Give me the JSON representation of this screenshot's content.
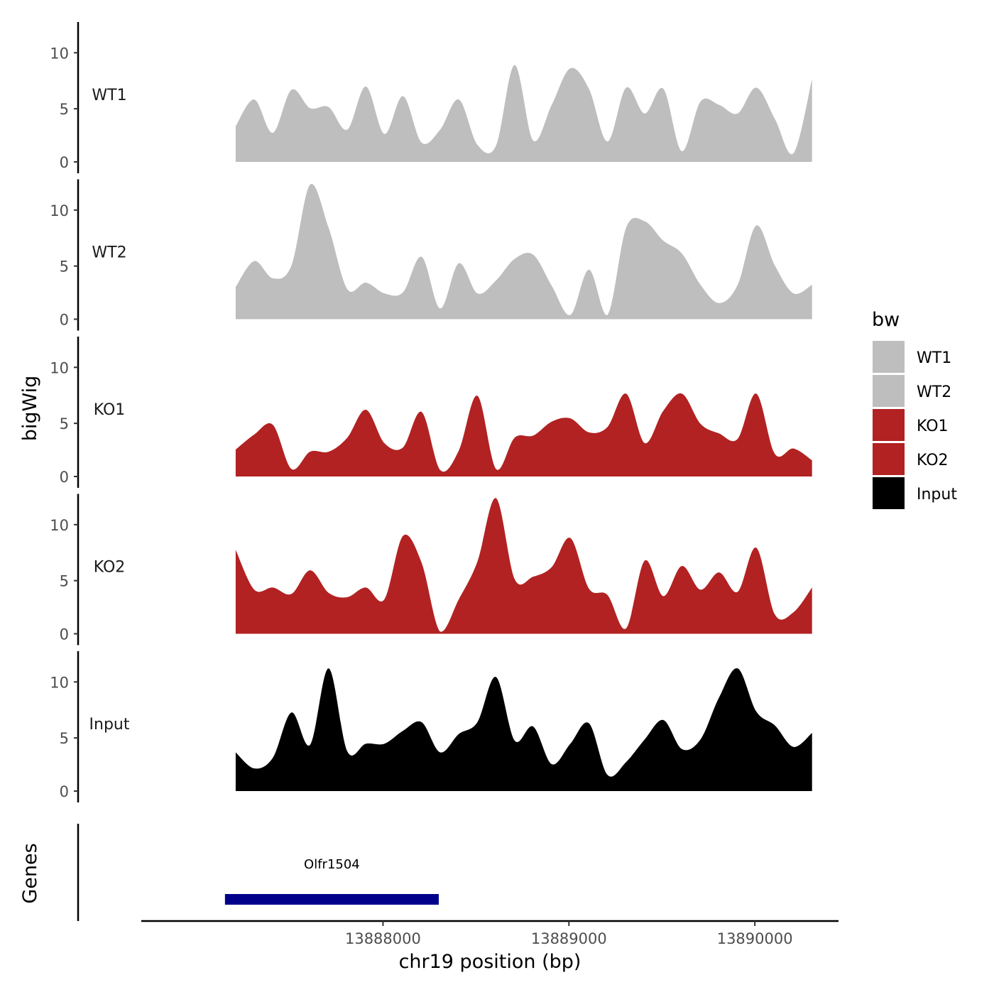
{
  "chart_data": {
    "type": "area",
    "title": "",
    "xlabel": "chr19 position (bp)",
    "ylabel": "bigWig",
    "genes_label": "Genes",
    "xlim": [
      13886700,
      13890450
    ],
    "x_ticks": [
      13888000,
      13889000,
      13890000
    ],
    "x_tick_labels": [
      "13888000",
      "13889000",
      "13890000"
    ],
    "ylim": [
      0,
      13
    ],
    "y_ticks": [
      0,
      5,
      10
    ],
    "y_tick_labels": [
      "0",
      "5",
      "10"
    ],
    "legend": {
      "title": "bw",
      "position": "right",
      "entries": [
        {
          "label": "WT1",
          "color": "#BEBEBE"
        },
        {
          "label": "WT2",
          "color": "#BEBEBE"
        },
        {
          "label": "KO1",
          "color": "#B22222"
        },
        {
          "label": "KO2",
          "color": "#B22222"
        },
        {
          "label": "Input",
          "color": "#000000"
        }
      ]
    },
    "x": [
      13887200,
      13887300,
      13887400,
      13887500,
      13887600,
      13887700,
      13887800,
      13887900,
      13888000,
      13888100,
      13888200,
      13888300,
      13888400,
      13888500,
      13888600,
      13888700,
      13888800,
      13888900,
      13889000,
      13889100,
      13889200,
      13889300,
      13889400,
      13889500,
      13889600,
      13889700,
      13889800,
      13889900,
      13890000,
      13890100,
      13890200,
      13890300
    ],
    "series": [
      {
        "name": "WT1",
        "color": "#BEBEBE",
        "values": [
          3.3,
          5.8,
          2.7,
          6.7,
          5.0,
          5.1,
          3.0,
          7.0,
          2.6,
          6.1,
          1.8,
          3.0,
          5.8,
          1.6,
          1.5,
          9.0,
          2.0,
          5.3,
          8.7,
          6.8,
          1.9,
          6.9,
          4.5,
          6.8,
          1.0,
          5.6,
          5.3,
          4.5,
          6.9,
          4.0,
          0.8,
          7.7
        ]
      },
      {
        "name": "WT2",
        "color": "#BEBEBE",
        "values": [
          3.0,
          5.4,
          3.8,
          5.0,
          12.5,
          8.5,
          2.8,
          3.4,
          2.4,
          2.5,
          5.8,
          1.0,
          5.2,
          2.4,
          3.6,
          5.6,
          6.0,
          3.1,
          0.4,
          4.6,
          0.4,
          8.5,
          9.1,
          7.3,
          6.1,
          3.2,
          1.5,
          3.2,
          8.7,
          5.0,
          2.4,
          3.2
        ]
      },
      {
        "name": "KO1",
        "color": "#B22222",
        "values": [
          2.5,
          3.9,
          4.8,
          0.7,
          2.3,
          2.3,
          3.6,
          6.2,
          3.1,
          2.7,
          6.0,
          0.6,
          2.4,
          7.5,
          0.7,
          3.6,
          3.8,
          5.1,
          5.4,
          4.1,
          4.6,
          7.7,
          3.1,
          6.1,
          7.7,
          4.9,
          4.0,
          3.5,
          7.7,
          2.1,
          2.6,
          1.5
        ]
      },
      {
        "name": "KO2",
        "color": "#B22222",
        "values": [
          7.8,
          4.1,
          4.3,
          3.7,
          5.9,
          3.8,
          3.4,
          4.3,
          3.2,
          9.1,
          6.6,
          0.2,
          3.2,
          6.7,
          12.6,
          5.1,
          5.3,
          6.2,
          8.9,
          4.2,
          3.6,
          0.5,
          6.8,
          3.5,
          6.3,
          4.1,
          5.7,
          3.9,
          8.0,
          1.8,
          2.0,
          4.3
        ]
      },
      {
        "name": "Input",
        "color": "#000000",
        "values": [
          3.6,
          2.1,
          3.1,
          7.3,
          4.3,
          11.4,
          3.7,
          4.4,
          4.4,
          5.6,
          6.4,
          3.6,
          5.3,
          6.4,
          10.6,
          4.7,
          6.0,
          2.5,
          4.4,
          6.3,
          1.5,
          2.7,
          4.8,
          6.6,
          3.9,
          4.8,
          8.7,
          11.4,
          7.4,
          6.1,
          4.1,
          5.4
        ]
      }
    ],
    "track_labels": [
      "WT1",
      "WT2",
      "KO1",
      "KO2",
      "Input"
    ],
    "genes": [
      {
        "name": "Olfr1504",
        "start": 13887150,
        "end": 13888300,
        "color": "#00008B"
      }
    ]
  }
}
